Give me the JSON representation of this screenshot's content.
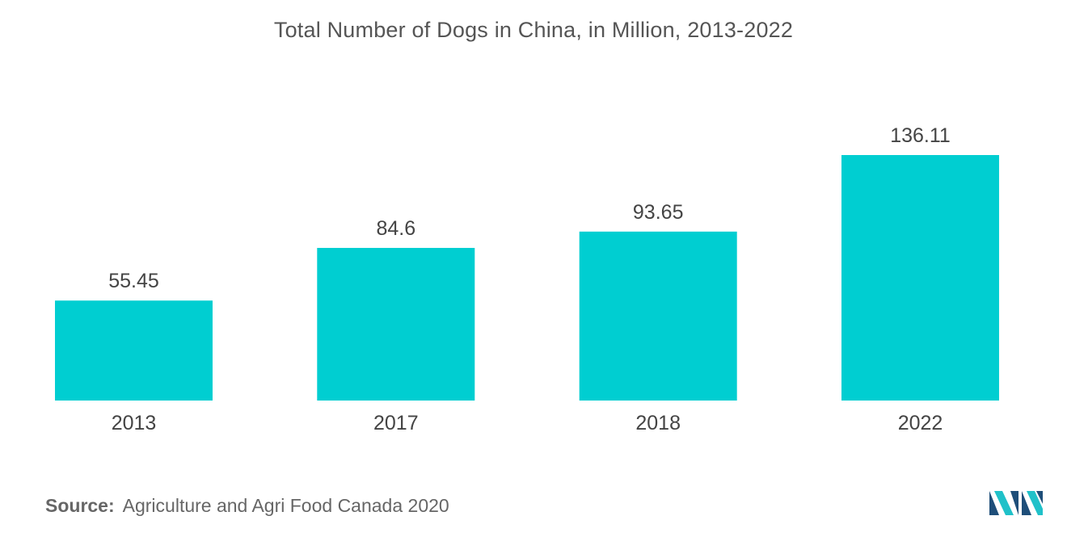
{
  "chart_data": {
    "type": "bar",
    "title": "Total Number of Dogs in China, in Million, 2013-2022",
    "categories": [
      "2013",
      "2017",
      "2018",
      "2022"
    ],
    "values": [
      55.45,
      84.6,
      93.65,
      136.11
    ],
    "value_labels": [
      "55.45",
      "84.6",
      "93.65",
      "136.11"
    ],
    "xlabel": "",
    "ylabel": "",
    "ylim": [
      0,
      136.11
    ],
    "grid": false,
    "legend": "none",
    "bar_color": "#00CED1"
  },
  "source": {
    "prefix": "Source:",
    "text": "Agriculture and Agri Food Canada 2020"
  },
  "logo": {
    "icon": "mordor-intelligence-logo-icon",
    "colors": [
      "#1E4E79",
      "#20C1C9"
    ]
  }
}
